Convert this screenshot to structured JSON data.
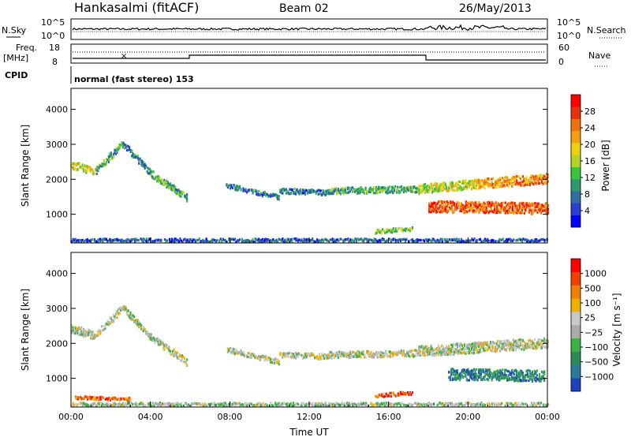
{
  "header": {
    "station": "Hankasalmi (fitACF)",
    "beam": "Beam 02",
    "date": "26/May/2013"
  },
  "strip_labels": {
    "nsky": "N.Sky",
    "nsky_ticks": [
      "10^5",
      "10^0"
    ],
    "nsearch": "N.Search",
    "nsearch_ticks": [
      "10^5",
      "10^0"
    ],
    "freq": "Freq.",
    "freq_unit": "[MHz]",
    "freq_ticks": [
      "18",
      "8"
    ],
    "nave": "Nave",
    "nave_ticks": [
      "60",
      "0"
    ],
    "cpid": "CPID",
    "mode": "normal (fast stereo) 153"
  },
  "chart_data": [
    {
      "type": "heatmap",
      "name": "power",
      "title": "",
      "xlabel": "Time UT",
      "ylabel": "Slant Range [km]",
      "x_ticks": [
        "00:00",
        "04:00",
        "08:00",
        "12:00",
        "16:00",
        "20:00",
        "00:00"
      ],
      "x_range_hours": [
        0,
        24
      ],
      "y_ticks": [
        1000,
        2000,
        3000,
        4000
      ],
      "ylim": [
        180,
        4600
      ],
      "colorbar": {
        "label": "Power [dB]",
        "ticks": [
          "4",
          "8",
          "12",
          "16",
          "20",
          "24",
          "28"
        ],
        "colors": [
          "#0000ff",
          "#2a3fd0",
          "#2f6ea0",
          "#2f9a6a",
          "#3cc53c",
          "#b5d226",
          "#f0d010",
          "#f5a010",
          "#f07010",
          "#e83010",
          "#ff0000"
        ]
      },
      "bands": [
        {
          "start_h": 0.0,
          "end_h": 1.2,
          "r_start": 2450,
          "r_end": 2250,
          "width": 230,
          "level": 0.55
        },
        {
          "start_h": 1.2,
          "end_h": 2.6,
          "r_start": 2250,
          "r_end": 3050,
          "width": 200,
          "level": 0.35
        },
        {
          "start_h": 2.6,
          "end_h": 4.0,
          "r_start": 3050,
          "r_end": 2200,
          "width": 180,
          "level": 0.3
        },
        {
          "start_h": 4.0,
          "end_h": 5.8,
          "r_start": 2200,
          "r_end": 1500,
          "width": 200,
          "level": 0.35
        },
        {
          "start_h": 7.8,
          "end_h": 10.5,
          "r_start": 1850,
          "r_end": 1500,
          "width": 140,
          "level": 0.25
        },
        {
          "start_h": 10.5,
          "end_h": 13.0,
          "r_start": 1700,
          "r_end": 1650,
          "width": 150,
          "level": 0.25
        },
        {
          "start_h": 13.0,
          "end_h": 17.5,
          "r_start": 1700,
          "r_end": 1750,
          "width": 180,
          "level": 0.35
        },
        {
          "start_h": 17.5,
          "end_h": 20.5,
          "r_start": 1750,
          "r_end": 1900,
          "width": 260,
          "level": 0.55
        },
        {
          "start_h": 20.5,
          "end_h": 24.0,
          "r_start": 1900,
          "r_end": 2050,
          "width": 280,
          "level": 0.7
        },
        {
          "start_h": 18.0,
          "end_h": 24.0,
          "r_start": 1250,
          "r_end": 1200,
          "width": 320,
          "level": 0.8
        },
        {
          "start_h": 15.3,
          "end_h": 17.2,
          "r_start": 530,
          "r_end": 620,
          "width": 110,
          "level": 0.45
        },
        {
          "start_h": 0.0,
          "end_h": 24.0,
          "r_start": 290,
          "r_end": 290,
          "width": 90,
          "level": 0.2
        }
      ]
    },
    {
      "type": "heatmap",
      "name": "velocity",
      "title": "",
      "xlabel": "Time UT",
      "ylabel": "Slant Range [km]",
      "x_ticks": [
        "00:00",
        "04:00",
        "08:00",
        "12:00",
        "16:00",
        "20:00",
        "00:00"
      ],
      "x_range_hours": [
        0,
        24
      ],
      "y_ticks": [
        1000,
        2000,
        3000,
        4000
      ],
      "ylim": [
        180,
        4600
      ],
      "colorbar": {
        "label": "Velocity [m s⁻¹]",
        "ticks": [
          "1000",
          "500",
          "100",
          "25",
          "−25",
          "−100",
          "−500",
          "−1000"
        ],
        "colors": [
          "#2040c0",
          "#2a7a9a",
          "#2e8b57",
          "#3cb043",
          "#aaaaaa",
          "#c8c8c8",
          "#f0b000",
          "#f08000",
          "#f04000",
          "#ff0000"
        ]
      },
      "bands": [
        {
          "start_h": 0.0,
          "end_h": 1.2,
          "r_start": 2450,
          "r_end": 2250,
          "width": 230,
          "level": 0.5
        },
        {
          "start_h": 1.2,
          "end_h": 2.6,
          "r_start": 2250,
          "r_end": 3050,
          "width": 200,
          "level": 0.5
        },
        {
          "start_h": 2.6,
          "end_h": 4.0,
          "r_start": 3050,
          "r_end": 2200,
          "width": 180,
          "level": 0.5
        },
        {
          "start_h": 4.0,
          "end_h": 5.8,
          "r_start": 2200,
          "r_end": 1500,
          "width": 200,
          "level": 0.5
        },
        {
          "start_h": 7.8,
          "end_h": 10.5,
          "r_start": 1850,
          "r_end": 1500,
          "width": 140,
          "level": 0.5
        },
        {
          "start_h": 10.5,
          "end_h": 13.0,
          "r_start": 1700,
          "r_end": 1650,
          "width": 150,
          "level": 0.5
        },
        {
          "start_h": 13.0,
          "end_h": 17.5,
          "r_start": 1700,
          "r_end": 1750,
          "width": 180,
          "level": 0.5
        },
        {
          "start_h": 17.5,
          "end_h": 24.0,
          "r_start": 1800,
          "r_end": 2050,
          "width": 300,
          "level": 0.5
        },
        {
          "start_h": 19.0,
          "end_h": 23.8,
          "r_start": 1150,
          "r_end": 1100,
          "width": 320,
          "level": 0.2
        },
        {
          "start_h": 15.3,
          "end_h": 17.2,
          "r_start": 530,
          "r_end": 620,
          "width": 110,
          "level": 0.85
        },
        {
          "start_h": 0.2,
          "end_h": 3.0,
          "r_start": 480,
          "r_end": 430,
          "width": 90,
          "level": 0.8
        },
        {
          "start_h": 0.0,
          "end_h": 24.0,
          "r_start": 290,
          "r_end": 290,
          "width": 90,
          "level": 0.45
        }
      ]
    }
  ]
}
